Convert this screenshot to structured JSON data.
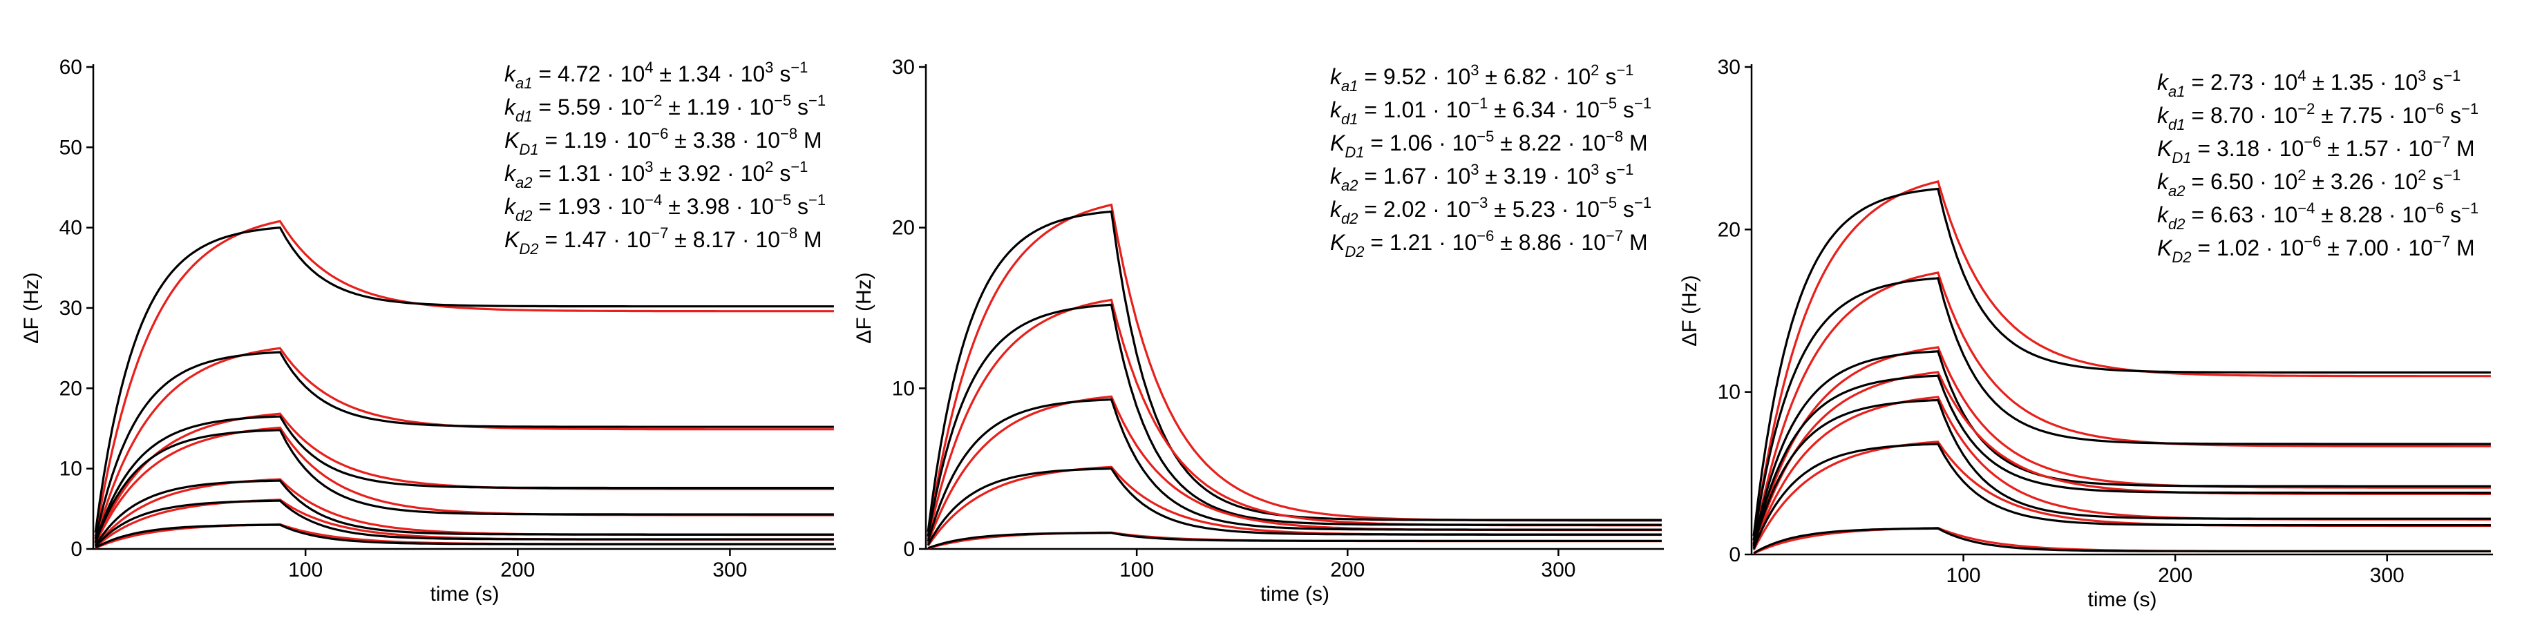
{
  "chart_data": [
    {
      "type": "line",
      "title": "",
      "xlabel": "time (s)",
      "ylabel": "ΔF (Hz)",
      "xlim": [
        0,
        350
      ],
      "ylim": [
        0,
        60
      ],
      "x_ticks": [
        100,
        200,
        300
      ],
      "y_ticks": [
        0,
        10,
        20,
        30,
        40,
        50,
        60
      ],
      "injection_end_s": 88,
      "series_legend": {
        "fit": "red",
        "measured": "black"
      },
      "series": [
        {
          "name": "curve-1",
          "peak": 40.0,
          "plateau": 30.2
        },
        {
          "name": "curve-2",
          "peak": 24.5,
          "plateau": 15.2
        },
        {
          "name": "curve-3",
          "peak": 16.5,
          "plateau": 7.6
        },
        {
          "name": "curve-4",
          "peak": 14.8,
          "plateau": 4.3
        },
        {
          "name": "curve-5",
          "peak": 8.5,
          "plateau": 1.8
        },
        {
          "name": "curve-6",
          "peak": 6.0,
          "plateau": 1.2
        },
        {
          "name": "curve-7",
          "peak": 3.0,
          "plateau": 0.6
        }
      ],
      "parameters": [
        {
          "sym": "k",
          "sub": "a1",
          "m": "4.72",
          "e": "4",
          "em": "1.34",
          "ee": "3",
          "unit": "s",
          "ue": "−1"
        },
        {
          "sym": "k",
          "sub": "d1",
          "m": "5.59",
          "e": "−2",
          "em": "1.19",
          "ee": "−5",
          "unit": "s",
          "ue": "−1"
        },
        {
          "sym": "K",
          "sub": "D1",
          "m": "1.19",
          "e": "−6",
          "em": "3.38",
          "ee": "−8",
          "unit": "M",
          "ue": ""
        },
        {
          "sym": "k",
          "sub": "a2",
          "m": "1.31",
          "e": "3",
          "em": "3.92",
          "ee": "2",
          "unit": "s",
          "ue": "−1"
        },
        {
          "sym": "k",
          "sub": "d2",
          "m": "1.93",
          "e": "−4",
          "em": "3.98",
          "ee": "−5",
          "unit": "s",
          "ue": "−1"
        },
        {
          "sym": "K",
          "sub": "D2",
          "m": "1.47",
          "e": "−7",
          "em": "8.17",
          "ee": "−8",
          "unit": "M",
          "ue": ""
        }
      ]
    },
    {
      "type": "line",
      "title": "",
      "xlabel": "time (s)",
      "ylabel": "ΔF (Hz)",
      "xlim": [
        0,
        350
      ],
      "ylim": [
        0,
        30
      ],
      "x_ticks": [
        100,
        200,
        300
      ],
      "y_ticks": [
        0,
        10,
        20,
        30
      ],
      "injection_end_s": 88,
      "series_legend": {
        "fit": "red",
        "measured": "black"
      },
      "series": [
        {
          "name": "curve-1",
          "peak": 21.0,
          "plateau": 1.8
        },
        {
          "name": "curve-2",
          "peak": 15.2,
          "plateau": 1.5
        },
        {
          "name": "curve-3",
          "peak": 9.3,
          "plateau": 1.2
        },
        {
          "name": "curve-4",
          "peak": 5.0,
          "plateau": 0.9
        },
        {
          "name": "curve-5",
          "peak": 1.0,
          "plateau": 0.5
        }
      ],
      "parameters": [
        {
          "sym": "k",
          "sub": "a1",
          "m": "9.52",
          "e": "3",
          "em": "6.82",
          "ee": "2",
          "unit": "s",
          "ue": "−1"
        },
        {
          "sym": "k",
          "sub": "d1",
          "m": "1.01",
          "e": "−1",
          "em": "6.34",
          "ee": "−5",
          "unit": "s",
          "ue": "−1"
        },
        {
          "sym": "K",
          "sub": "D1",
          "m": "1.06",
          "e": "−5",
          "em": "8.22",
          "ee": "−8",
          "unit": "M",
          "ue": ""
        },
        {
          "sym": "k",
          "sub": "a2",
          "m": "1.67",
          "e": "3",
          "em": "3.19",
          "ee": "3",
          "unit": "s",
          "ue": "−1"
        },
        {
          "sym": "k",
          "sub": "d2",
          "m": "2.02",
          "e": "−3",
          "em": "5.23",
          "ee": "−5",
          "unit": "s",
          "ue": "−1"
        },
        {
          "sym": "K",
          "sub": "D2",
          "m": "1.21",
          "e": "−6",
          "em": "8.86",
          "ee": "−7",
          "unit": "M",
          "ue": ""
        }
      ]
    },
    {
      "type": "line",
      "title": "",
      "xlabel": "time (s)",
      "ylabel": "ΔF (Hz)",
      "xlim": [
        0,
        350
      ],
      "ylim": [
        0,
        30
      ],
      "x_ticks": [
        100,
        200,
        300
      ],
      "y_ticks": [
        0,
        10,
        20,
        30
      ],
      "injection_end_s": 88,
      "series_legend": {
        "fit": "red",
        "measured": "black"
      },
      "series": [
        {
          "name": "curve-1",
          "peak": 22.5,
          "plateau": 11.2
        },
        {
          "name": "curve-2",
          "peak": 17.0,
          "plateau": 6.8
        },
        {
          "name": "curve-3",
          "peak": 12.5,
          "plateau": 4.2
        },
        {
          "name": "curve-4",
          "peak": 11.0,
          "plateau": 3.8
        },
        {
          "name": "curve-5",
          "peak": 9.5,
          "plateau": 2.2
        },
        {
          "name": "curve-6",
          "peak": 6.8,
          "plateau": 1.8
        },
        {
          "name": "curve-7",
          "peak": 1.6,
          "plateau": 0.2
        }
      ],
      "parameters": [
        {
          "sym": "k",
          "sub": "a1",
          "m": "2.73",
          "e": "4",
          "em": "1.35",
          "ee": "3",
          "unit": "s",
          "ue": "−1"
        },
        {
          "sym": "k",
          "sub": "d1",
          "m": "8.70",
          "e": "−2",
          "em": "7.75",
          "ee": "−6",
          "unit": "s",
          "ue": "−1"
        },
        {
          "sym": "K",
          "sub": "D1",
          "m": "3.18",
          "e": "−6",
          "em": "1.57",
          "ee": "−7",
          "unit": "M",
          "ue": ""
        },
        {
          "sym": "k",
          "sub": "a2",
          "m": "6.50",
          "e": "2",
          "em": "3.26",
          "ee": "2",
          "unit": "s",
          "ue": "−1"
        },
        {
          "sym": "k",
          "sub": "d2",
          "m": "6.63",
          "e": "−4",
          "em": "8.28",
          "ee": "−6",
          "unit": "s",
          "ue": "−1"
        },
        {
          "sym": "K",
          "sub": "D2",
          "m": "1.02",
          "e": "−6",
          "em": "7.00",
          "ee": "−7",
          "unit": "M",
          "ue": ""
        }
      ]
    }
  ]
}
